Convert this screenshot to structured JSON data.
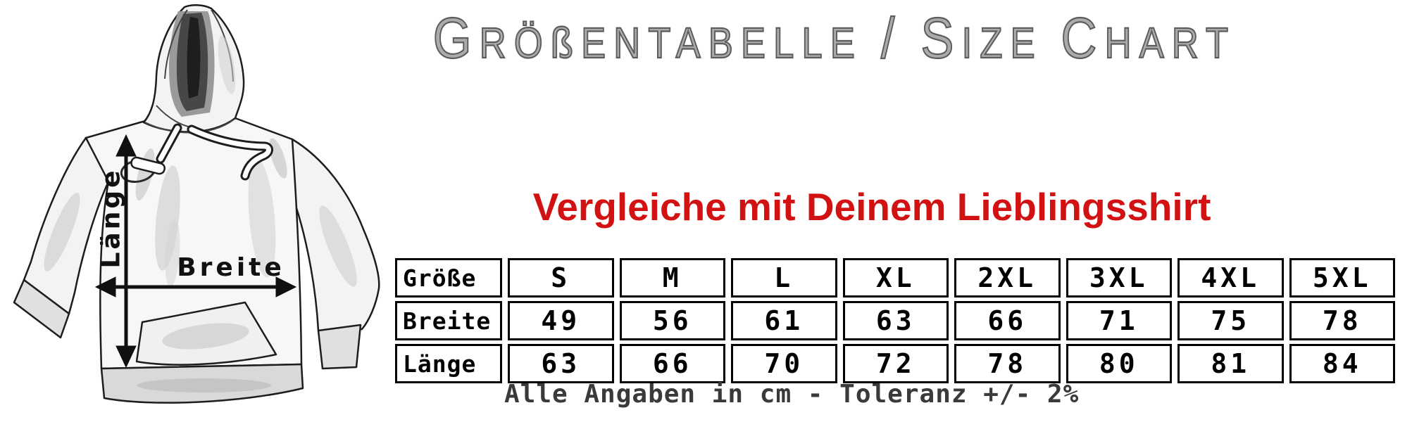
{
  "header": {
    "title": "Größentabelle / Size Chart",
    "title_color": "#6b6b6b"
  },
  "subtitle": {
    "text": "Vergleiche mit Deinem Lieblingsshirt",
    "color": "#d21212"
  },
  "diagram": {
    "garment": "hooded sweatshirt",
    "length_label": "Länge",
    "width_label": "Breite"
  },
  "chart_data": {
    "type": "table",
    "title": "Größentabelle / Size Chart",
    "columns": [
      "Größe",
      "S",
      "M",
      "L",
      "XL",
      "2XL",
      "3XL",
      "4XL",
      "5XL"
    ],
    "rows": [
      {
        "label": "Breite",
        "values": [
          49,
          56,
          61,
          63,
          66,
          71,
          75,
          78
        ]
      },
      {
        "label": "Länge",
        "values": [
          63,
          66,
          70,
          72,
          78,
          80,
          81,
          84
        ]
      }
    ],
    "units": "cm",
    "note": "Alle Angaben in cm - Toleranz +/- 2%"
  },
  "footer": {
    "note": "Alle Angaben in cm - Toleranz +/- 2%"
  },
  "colors": {
    "background": "#ffffff",
    "accent_red": "#d21212",
    "title_gray": "#6b6b6b",
    "table_border": "#000000",
    "table_text": "#000000",
    "sketch_outline": "#1d1d1d"
  }
}
